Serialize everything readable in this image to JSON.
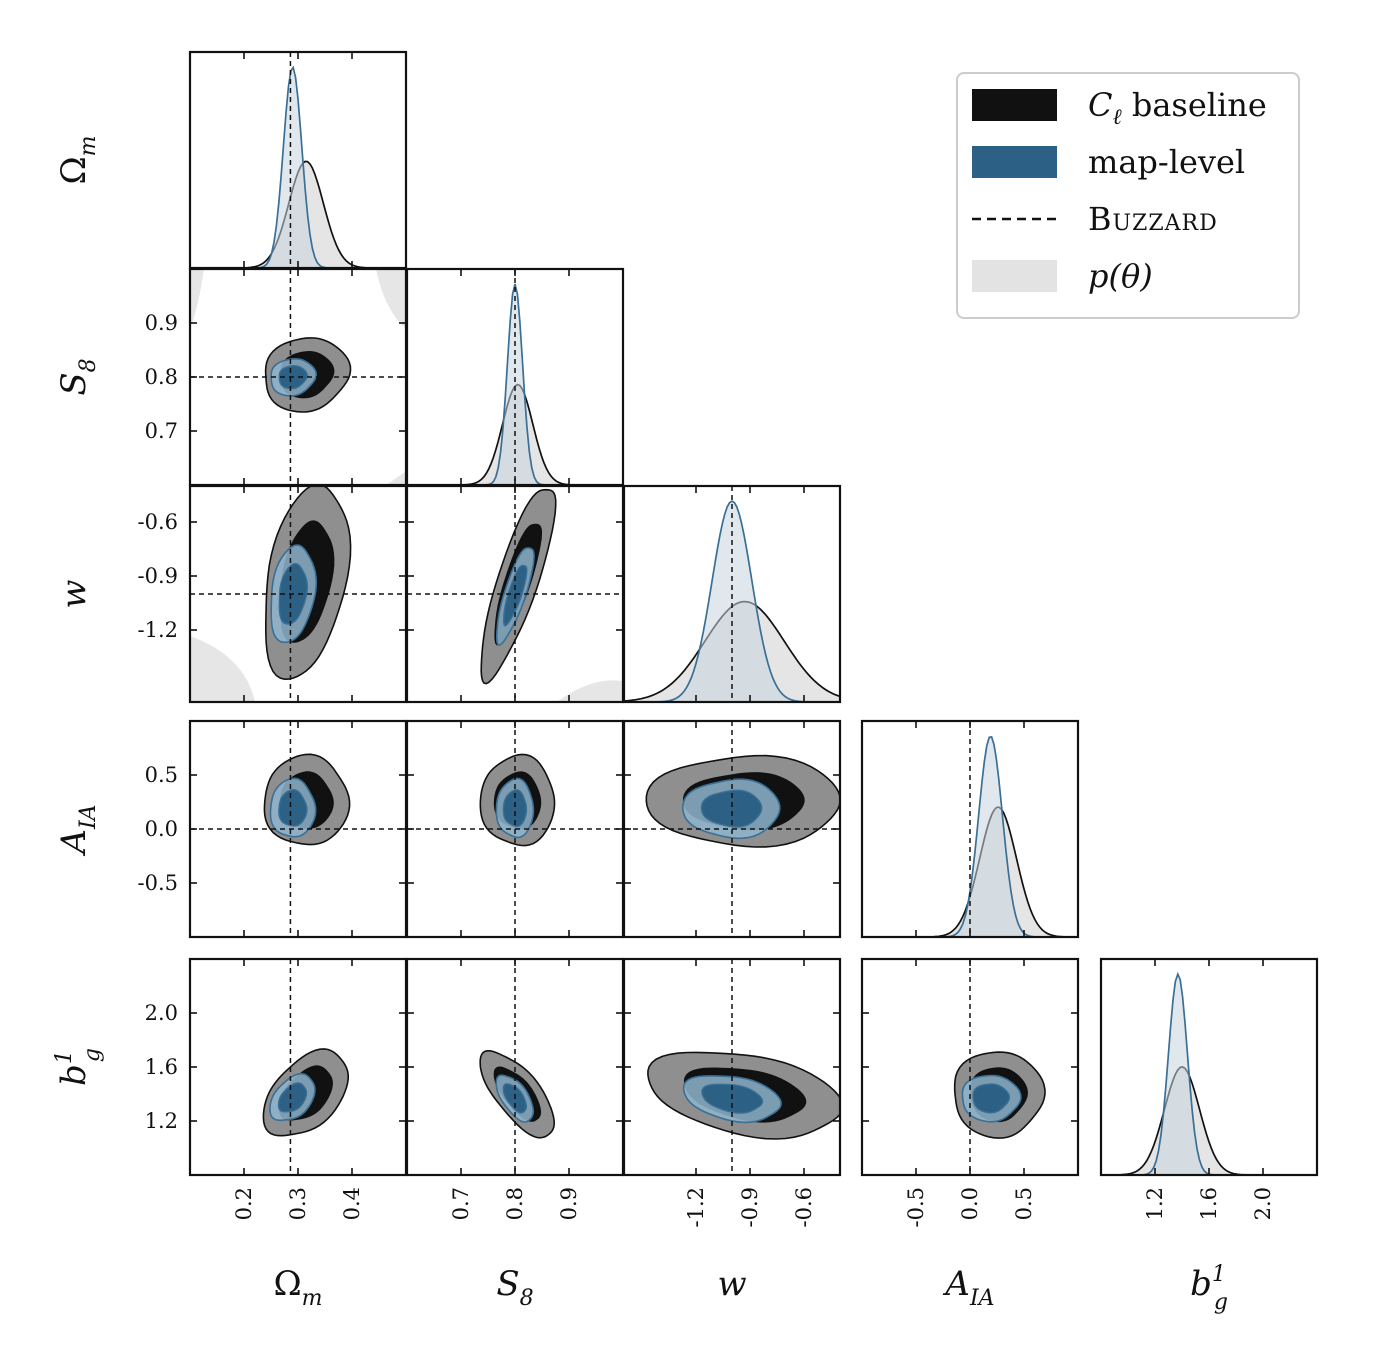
{
  "chart_data": {
    "type": "corner",
    "title": "",
    "parameters": [
      {
        "key": "Om",
        "label": "Ω",
        "sub": "m",
        "sup": "",
        "range": [
          0.1,
          0.5
        ],
        "ticks": [
          0.2,
          0.3,
          0.4
        ],
        "tick_labels": [
          "0.2",
          "0.3",
          "0.4"
        ],
        "truth": 0.286
      },
      {
        "key": "S8",
        "label": "S",
        "sub": "8",
        "sup": "",
        "range": [
          0.6,
          1.0
        ],
        "ticks": [
          0.7,
          0.8,
          0.9
        ],
        "tick_labels": [
          "0.7",
          "0.8",
          "0.9"
        ],
        "truth": 0.8
      },
      {
        "key": "w",
        "label": "w",
        "sub": "",
        "sup": "",
        "range": [
          -1.6,
          -0.4
        ],
        "ticks": [
          -1.2,
          -0.9,
          -0.6
        ],
        "tick_labels": [
          "-1.2",
          "-0.9",
          "-0.6"
        ],
        "truth": -1.0
      },
      {
        "key": "AIA",
        "label": "A",
        "sub": "IA",
        "sup": "",
        "range": [
          -1.0,
          1.0
        ],
        "ticks": [
          -0.5,
          0.0,
          0.5
        ],
        "tick_labels": [
          "-0.5",
          "0.0",
          "0.5"
        ],
        "truth": 0.0
      },
      {
        "key": "bg",
        "label": "b",
        "sub": "g",
        "sup": "1",
        "range": [
          0.8,
          2.4
        ],
        "ticks": [
          1.2,
          1.6,
          2.0
        ],
        "tick_labels": [
          "1.2",
          "1.6",
          "2.0"
        ],
        "truth": null
      }
    ],
    "series": [
      {
        "name": "C_ℓ baseline",
        "color": "#111111",
        "fill68": "#111111",
        "fill95": "#8f8f8f",
        "mean": [
          0.315,
          0.805,
          -0.93,
          0.26,
          1.4
        ],
        "sigma": [
          0.032,
          0.028,
          0.22,
          0.17,
          0.13
        ],
        "corr": {
          "0-1": 0.1,
          "0-2": 0.35,
          "1-2": 0.82,
          "0-4": 0.45,
          "1-4": -0.7,
          "2-4": -0.35,
          "0-3": 0.0,
          "1-3": 0.0,
          "2-3": 0.0,
          "3-4": 0.0
        }
      },
      {
        "name": "map-level",
        "color": "#3a6f96",
        "fill68": "#2c6185",
        "fill95": "#8fb5cf",
        "mean": [
          0.29,
          0.8,
          -1.0,
          0.19,
          1.37
        ],
        "sigma": [
          0.017,
          0.014,
          0.11,
          0.11,
          0.07
        ],
        "corr": {
          "0-1": 0.1,
          "0-2": 0.25,
          "1-2": 0.8,
          "0-4": 0.4,
          "1-4": -0.6,
          "2-4": -0.3,
          "0-3": 0.0,
          "1-3": 0.0,
          "2-3": 0.0,
          "3-4": 0.0
        }
      }
    ],
    "prior": {
      "name": "p(θ)",
      "color": "#e6e6e6"
    },
    "truth_label": "Buzzard",
    "legend": [
      {
        "kind": "box",
        "color": "#111111",
        "main": "C",
        "sub": "ℓ",
        "rest": " baseline"
      },
      {
        "kind": "box",
        "color": "#2c6185",
        "main": "map-level",
        "sub": "",
        "rest": ""
      },
      {
        "kind": "dash",
        "color": "#111111",
        "main": "Buzzard",
        "sub": "",
        "rest": ""
      },
      {
        "kind": "box",
        "color": "#e3e3e3",
        "main": "p(θ)",
        "sub": "",
        "rest": ""
      }
    ],
    "legend_position": "top-right"
  }
}
